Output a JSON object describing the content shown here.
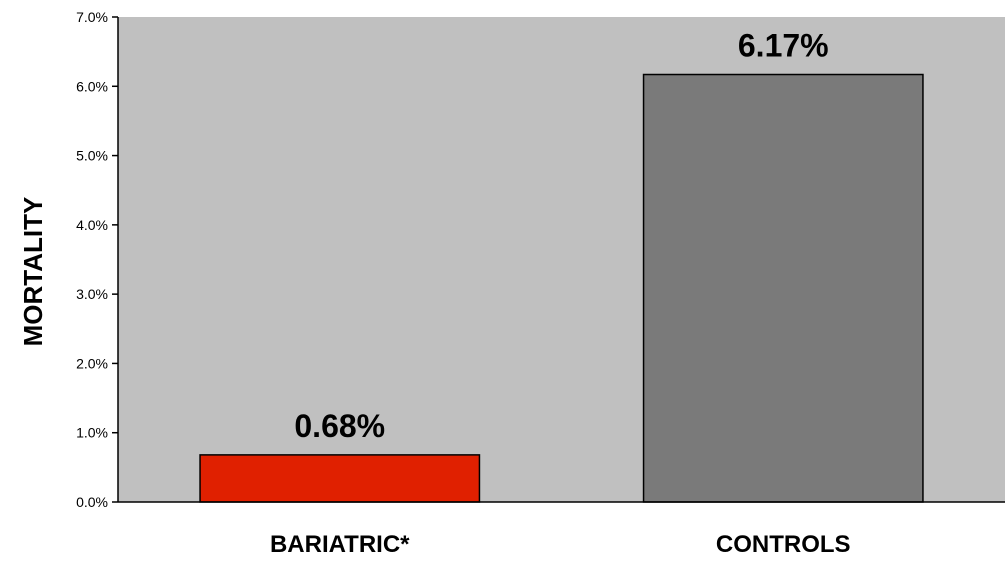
{
  "chart_data": {
    "type": "bar",
    "categories": [
      "BARIATRIC*",
      "CONTROLS"
    ],
    "values": [
      0.68,
      6.17
    ],
    "data_labels": [
      "0.68%",
      "6.17%"
    ],
    "ylabel": "MORTALITY",
    "ylim": [
      0,
      7
    ],
    "y_ticks": [
      0,
      1,
      2,
      3,
      4,
      5,
      6,
      7
    ],
    "y_tick_labels": [
      "0.0%",
      "1.0%",
      "2.0%",
      "3.0%",
      "4.0%",
      "5.0%",
      "6.0%",
      "7.0%"
    ],
    "bar_colors": [
      "#e02000",
      "#7a7a7a"
    ],
    "plot_background": "#c0c0c0",
    "grid": false,
    "legend": "none"
  }
}
